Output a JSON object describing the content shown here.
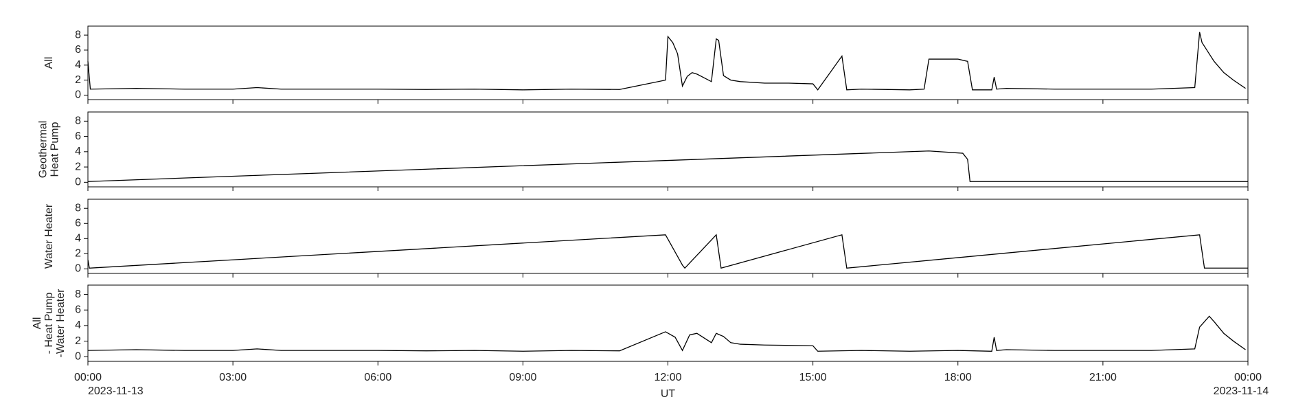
{
  "chart_data": [
    {
      "type": "line",
      "ylabel": [
        "All"
      ],
      "color": "#000000",
      "x": [
        0,
        0.05,
        1,
        2,
        3,
        3.5,
        4,
        5,
        6,
        7,
        8,
        9,
        10,
        11,
        11.95,
        12,
        12.1,
        12.2,
        12.3,
        12.4,
        12.5,
        12.6,
        12.9,
        13.0,
        13.05,
        13.15,
        13.3,
        13.5,
        14,
        14.5,
        15,
        15.1,
        15.6,
        15.7,
        16,
        17,
        17.3,
        17.4,
        18,
        18.2,
        18.3,
        18.7,
        18.75,
        18.8,
        19,
        20,
        21,
        22,
        22.9,
        23.0,
        23.05,
        23.15,
        23.3,
        23.5,
        23.7,
        23.95
      ],
      "values": [
        4.5,
        0.8,
        0.9,
        0.8,
        0.8,
        1.0,
        0.8,
        0.8,
        0.8,
        0.75,
        0.8,
        0.7,
        0.8,
        0.75,
        2.0,
        7.8,
        7.0,
        5.5,
        1.2,
        2.5,
        3.0,
        2.8,
        1.8,
        7.5,
        7.3,
        2.6,
        2.0,
        1.8,
        1.6,
        1.6,
        1.5,
        0.7,
        5.2,
        0.7,
        0.8,
        0.7,
        0.8,
        4.8,
        4.8,
        4.5,
        0.7,
        0.7,
        2.4,
        0.8,
        0.9,
        0.8,
        0.8,
        0.8,
        1.0,
        8.4,
        7.0,
        6.0,
        4.5,
        3.0,
        2.0,
        0.9
      ],
      "ylim": [
        -0.6,
        9.2
      ],
      "yticks": [
        0,
        2,
        4,
        6,
        8
      ],
      "xlim": [
        0,
        24
      ],
      "xticks": [
        0,
        3,
        6,
        9,
        12,
        15,
        18,
        21,
        24
      ]
    },
    {
      "type": "line",
      "ylabel": [
        "Geothermal",
        "Heat Pump"
      ],
      "color": "#000000",
      "x": [
        0,
        17.4,
        18.1,
        18.2,
        18.25,
        24
      ],
      "values": [
        0.1,
        4.1,
        3.8,
        3.0,
        0.1,
        0.1
      ],
      "ylim": [
        -0.6,
        9.2
      ],
      "yticks": [
        0,
        2,
        4,
        6,
        8
      ],
      "xlim": [
        0,
        24
      ],
      "xticks": [
        0,
        3,
        6,
        9,
        12,
        15,
        18,
        21,
        24
      ]
    },
    {
      "type": "line",
      "ylabel": [
        "Water Heater"
      ],
      "color": "#000000",
      "x": [
        0,
        0.03,
        11.95,
        12.3,
        12.35,
        13.0,
        13.1,
        15.6,
        15.7,
        23.0,
        23.1,
        24
      ],
      "values": [
        1.2,
        0.1,
        4.5,
        0.5,
        0.1,
        4.5,
        0.1,
        4.5,
        0.1,
        4.5,
        0.1,
        0.1
      ],
      "ylim": [
        -0.6,
        9.2
      ],
      "yticks": [
        0,
        2,
        4,
        6,
        8
      ],
      "xlim": [
        0,
        24
      ],
      "xticks": [
        0,
        3,
        6,
        9,
        12,
        15,
        18,
        21,
        24
      ]
    },
    {
      "type": "line",
      "ylabel": [
        "All",
        "- Heat Pump",
        "-Water Heater"
      ],
      "color": "#000000",
      "x": [
        0,
        1,
        2,
        3,
        3.5,
        4,
        5,
        6,
        7,
        8,
        9,
        10,
        11,
        11.95,
        12.15,
        12.3,
        12.45,
        12.6,
        12.9,
        13.0,
        13.15,
        13.3,
        13.5,
        14,
        15,
        15.1,
        16,
        17,
        18,
        18.7,
        18.75,
        18.8,
        19,
        20,
        21,
        22,
        22.9,
        23.0,
        23.2,
        23.3,
        23.5,
        23.7,
        23.95
      ],
      "values": [
        0.8,
        0.9,
        0.8,
        0.8,
        1.0,
        0.8,
        0.8,
        0.8,
        0.75,
        0.8,
        0.7,
        0.8,
        0.75,
        3.2,
        2.5,
        0.8,
        2.8,
        3.0,
        1.8,
        3.0,
        2.6,
        1.8,
        1.6,
        1.5,
        1.4,
        0.7,
        0.8,
        0.7,
        0.8,
        0.7,
        2.5,
        0.8,
        0.9,
        0.8,
        0.8,
        0.8,
        1.0,
        3.8,
        5.2,
        4.5,
        3.0,
        2.0,
        0.9
      ],
      "ylim": [
        -0.6,
        9.2
      ],
      "yticks": [
        0,
        2,
        4,
        6,
        8
      ],
      "xlim": [
        0,
        24
      ],
      "xticks": [
        {
          "value": 0,
          "label": "00:00"
        },
        {
          "value": 3,
          "label": "03:00"
        },
        {
          "value": 6,
          "label": "06:00"
        },
        {
          "value": 9,
          "label": "09:00"
        },
        {
          "value": 12,
          "label": "12:00"
        },
        {
          "value": 15,
          "label": "15:00"
        },
        {
          "value": 18,
          "label": "18:00"
        },
        {
          "value": 21,
          "label": "21:00"
        },
        {
          "value": 24,
          "label": "00:00"
        }
      ],
      "xtick_dates": [
        {
          "value": 0,
          "label": "2023-11-13"
        },
        {
          "value": 24,
          "label": "2023-11-14"
        }
      ],
      "xlabel": "UT"
    }
  ]
}
